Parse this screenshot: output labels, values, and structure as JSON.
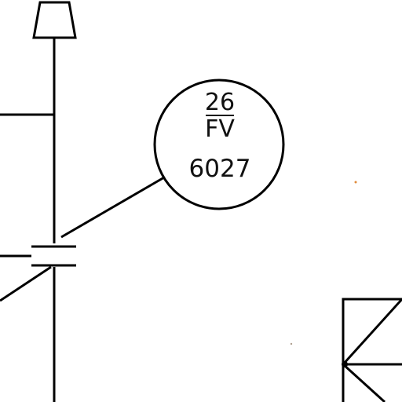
{
  "colors": {
    "ink": "#000000",
    "background": "#ffffff"
  },
  "instrument_tag": {
    "loop_number": "26",
    "function_code": "FV",
    "tag_number": "6027"
  },
  "symbols": [
    "pipe-end-cap",
    "main-vertical-line",
    "branch-line",
    "flange-pair",
    "instrument-bubble",
    "leader-line",
    "box-symbol"
  ]
}
